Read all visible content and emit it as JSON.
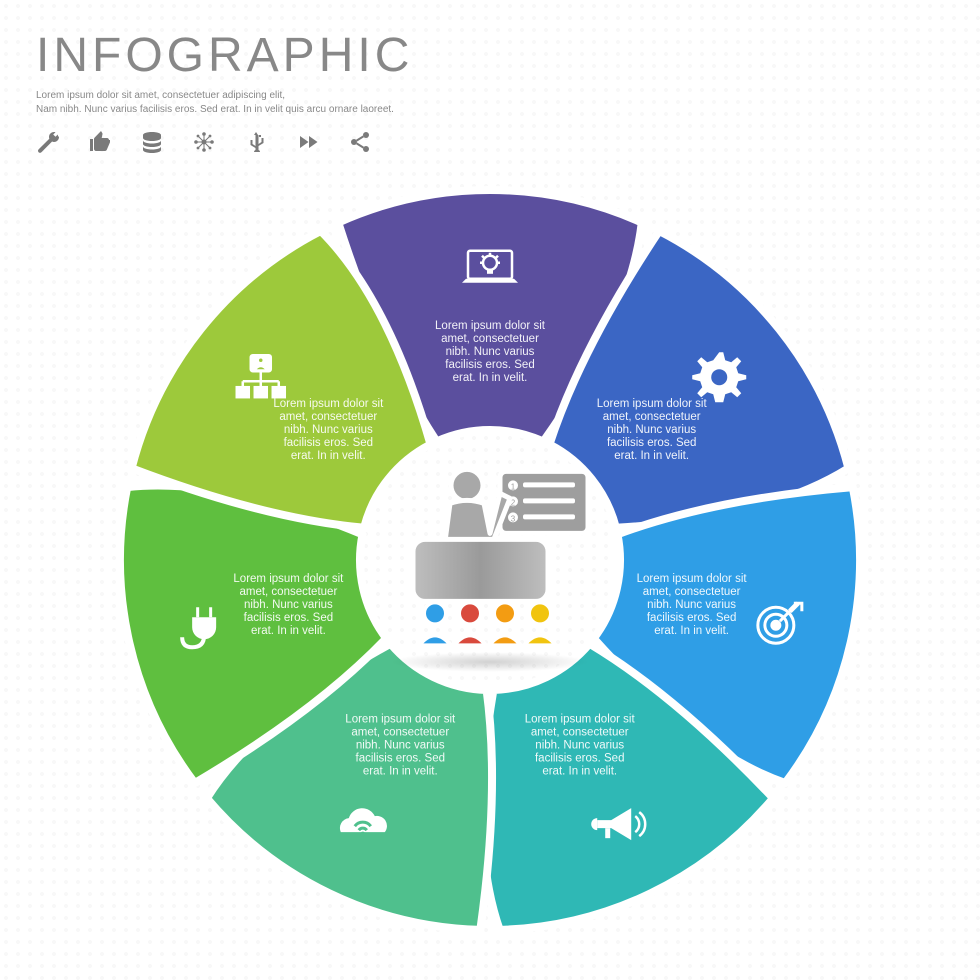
{
  "header": {
    "title": "INFOGRAPHIC",
    "subtitle_line1": "Lorem ipsum dolor sit amet, consectetuer adipiscing elit,",
    "subtitle_line2": "Nam nibh. Nunc varius facilisis eros. Sed erat. In in velit quis arcu ornare laoreet.",
    "title_color": "#888888",
    "title_fontsize": 48,
    "subtitle_color": "#888888",
    "subtitle_fontsize": 10,
    "icons": [
      "wrench-icon",
      "thumbs-up-icon",
      "database-icon",
      "network-icon",
      "usb-icon",
      "fast-forward-icon",
      "share-icon"
    ],
    "icon_color": "#7a7a7a"
  },
  "wheel": {
    "type": "infographic",
    "layout": "radial-7-segments",
    "outer_radius": 370,
    "inner_radius": 130,
    "gap_stroke": "#ffffff",
    "gap_width": 8,
    "segments": [
      {
        "index": 0,
        "angle_center_deg": -90,
        "color": "#5b4f9e",
        "icon": "laptop-idea-icon",
        "body": "Lorem ipsum dolor sit amet, consectetuer nibh. Nunc varius facilisis eros. Sed erat. In in velit."
      },
      {
        "index": 1,
        "angle_center_deg": -38.57,
        "color": "#3b66c4",
        "icon": "gear-icon",
        "body": "Lorem ipsum dolor sit amet, consectetuer nibh. Nunc varius facilisis eros. Sed erat. In in velit."
      },
      {
        "index": 2,
        "angle_center_deg": 12.86,
        "color": "#2f9ee6",
        "icon": "target-icon",
        "body": "Lorem ipsum dolor sit amet, consectetuer nibh. Nunc varius facilisis eros. Sed erat. In in velit."
      },
      {
        "index": 3,
        "angle_center_deg": 64.29,
        "color": "#2fb8b5",
        "icon": "megaphone-icon",
        "body": "Lorem ipsum dolor sit amet, consectetuer nibh. Nunc varius facilisis eros. Sed erat. In in velit."
      },
      {
        "index": 4,
        "angle_center_deg": 115.71,
        "color": "#4fc08d",
        "icon": "cloud-wifi-icon",
        "body": "Lorem ipsum dolor sit amet, consectetuer nibh. Nunc varius facilisis eros. Sed erat. In in velit."
      },
      {
        "index": 5,
        "angle_center_deg": 167.14,
        "color": "#5fbf3f",
        "icon": "plug-icon",
        "body": "Lorem ipsum dolor sit amet, consectetuer nibh. Nunc varius facilisis eros. Sed erat. In in velit."
      },
      {
        "index": 6,
        "angle_center_deg": 218.57,
        "color": "#9dc93b",
        "icon": "org-chart-icon",
        "body": "Lorem ipsum dolor sit amet, consectetuer nibh. Nunc varius facilisis eros. Sed erat. In in velit."
      }
    ],
    "body_fontsize": 11.5,
    "body_color": "#ffffff",
    "icon_color": "#ffffff",
    "icon_size": 48
  },
  "center": {
    "type": "presenter-audience-icon",
    "presenter_color": "#a8a8a8",
    "desk_color": "#b5b5b5",
    "board_color": "#9e9e9e",
    "audience_colors": [
      "#2f9ee6",
      "#d94a3d",
      "#f39c12",
      "#f1c40f"
    ],
    "outline_color": "#ffffff"
  },
  "background": {
    "color": "#ffffff",
    "dot_pattern_color": "#888888",
    "dot_pattern_opacity": 0.06
  }
}
